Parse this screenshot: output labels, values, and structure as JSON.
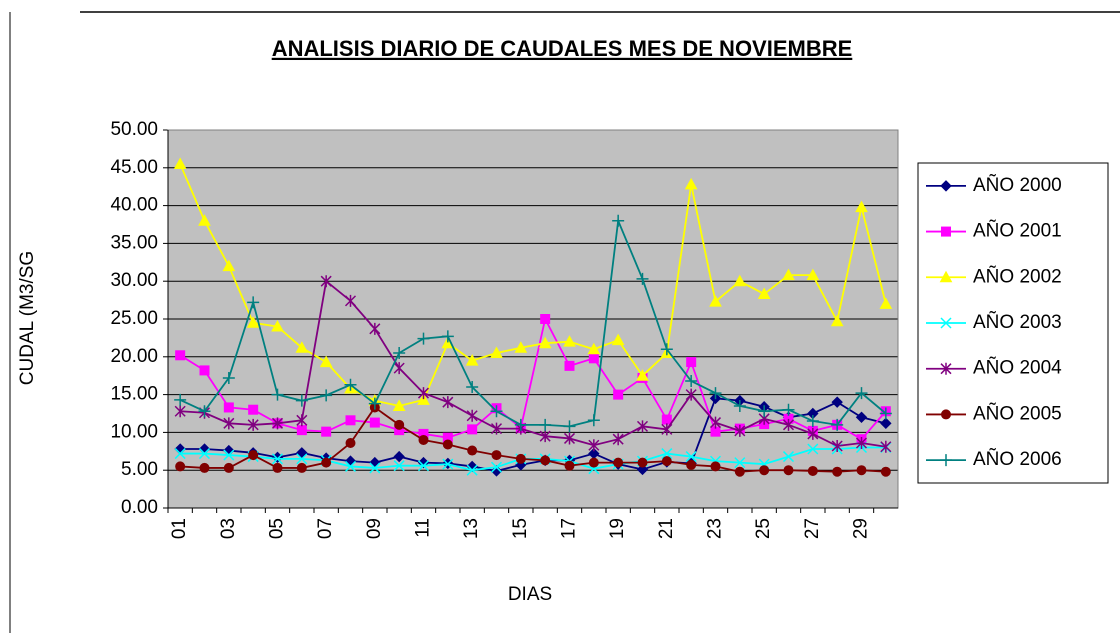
{
  "chart_data": {
    "type": "line",
    "title": "ANALISIS DIARIO DE CAUDALES MES DE NOVIEMBRE",
    "x_label": "DIAS",
    "y_label": "CUDAL (M3/SG",
    "categories": [
      "01",
      null,
      "03",
      null,
      "05",
      null,
      "07",
      null,
      "09",
      null,
      "11",
      null,
      "13",
      null,
      "15",
      null,
      "17",
      null,
      "19",
      null,
      "21",
      null,
      "23",
      null,
      "25",
      null,
      "27",
      null,
      "29",
      null
    ],
    "ylim": [
      0,
      50
    ],
    "yticks": [
      {
        "value": 0,
        "label": "0.00"
      },
      {
        "value": 5,
        "label": "5.00"
      },
      {
        "value": 10,
        "label": "10.00"
      },
      {
        "value": 15,
        "label": "15.00"
      },
      {
        "value": 20,
        "label": "20.00"
      },
      {
        "value": 25,
        "label": "25.00"
      },
      {
        "value": 30,
        "label": "30.00"
      },
      {
        "value": 35,
        "label": "35.00"
      },
      {
        "value": 40,
        "label": "40.00"
      },
      {
        "value": 45,
        "label": "45.00"
      },
      {
        "value": 50,
        "label": "50.00"
      }
    ],
    "grid": true,
    "legend": "right",
    "series": [
      {
        "name": "AÑO 2000",
        "color": "#000080",
        "marker": "diamond",
        "values": [
          7.8,
          7.8,
          7.6,
          7.3,
          6.7,
          7.3,
          6.6,
          6.2,
          6,
          6.8,
          6,
          5.9,
          5.5,
          4.9,
          5.7,
          6.3,
          6.3,
          7.2,
          5.8,
          5.1,
          6.1,
          5.9,
          14.5,
          14.2,
          13.4,
          12,
          12.5,
          14,
          12,
          11.2
        ]
      },
      {
        "name": "AÑO 2001",
        "color": "#ff00ff",
        "marker": "square",
        "values": [
          20.2,
          18.2,
          13.3,
          13,
          11.2,
          10.3,
          10.1,
          11.6,
          11.3,
          10.3,
          9.8,
          9.3,
          10.4,
          13.2,
          10.6,
          25,
          18.8,
          19.8,
          15,
          17.2,
          11.7,
          19.3,
          10.1,
          10.5,
          11.1,
          11.8,
          10.2,
          11,
          9.1,
          12.8
        ]
      },
      {
        "name": "AÑO 2002",
        "color": "#ffff00",
        "marker": "triangle",
        "values": [
          45.5,
          38,
          32,
          24.5,
          24,
          21.2,
          19.3,
          15.8,
          14.2,
          13.5,
          14.3,
          21.8,
          19.5,
          20.5,
          21.2,
          21.8,
          22,
          21,
          22.2,
          17.5,
          20.5,
          42.8,
          27.3,
          30,
          28.3,
          30.8,
          30.8,
          24.7,
          39.8,
          27
        ]
      },
      {
        "name": "AÑO 2003",
        "color": "#00ffff",
        "marker": "x",
        "values": [
          7.2,
          7.2,
          7,
          6.8,
          6.5,
          6.5,
          6.3,
          5.5,
          5.3,
          5.6,
          5.6,
          5.8,
          5,
          5.4,
          6.5,
          6.5,
          6.2,
          5.2,
          5.8,
          6.2,
          7.2,
          6.8,
          6.2,
          6,
          5.8,
          6.8,
          7.8,
          7.8,
          8,
          8
        ]
      },
      {
        "name": "AÑO 2004",
        "color": "#800080",
        "marker": "star",
        "values": [
          12.8,
          12.6,
          11.2,
          11,
          11.2,
          11.6,
          30,
          27.4,
          23.7,
          18.5,
          15.2,
          14,
          12.2,
          10.5,
          10.5,
          9.5,
          9.2,
          8.3,
          9.1,
          10.8,
          10.4,
          15,
          11.3,
          10.2,
          11.8,
          11,
          9.8,
          8.2,
          8.6,
          8.1
        ]
      },
      {
        "name": "AÑO 2005",
        "color": "#800000",
        "marker": "circle",
        "values": [
          5.5,
          5.3,
          5.3,
          7,
          5.3,
          5.3,
          6,
          8.6,
          13.3,
          11,
          9,
          8.4,
          7.6,
          7,
          6.5,
          6.3,
          5.6,
          6,
          6,
          6,
          6.2,
          5.7,
          5.5,
          4.8,
          5,
          5,
          4.9,
          4.8,
          5,
          4.8
        ]
      },
      {
        "name": "AÑO 2006",
        "color": "#008080",
        "marker": "plus",
        "values": [
          14.3,
          12.8,
          17.2,
          27.2,
          15,
          14.2,
          14.9,
          16.3,
          13.8,
          20.5,
          22.4,
          22.7,
          16,
          12.8,
          11,
          11,
          10.8,
          11.6,
          38,
          30.3,
          21,
          16.8,
          15.2,
          13.5,
          12.8,
          13,
          11.5,
          11,
          15.2,
          12.5
        ]
      }
    ]
  }
}
